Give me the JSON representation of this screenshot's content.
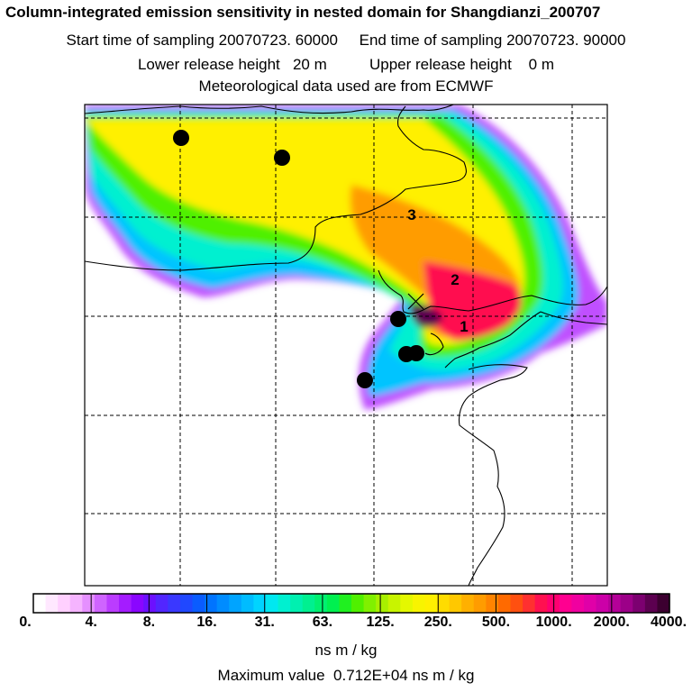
{
  "header": {
    "title": "Column-integrated emission sensitivity in nested domain for Shangdianzi_200707",
    "line2": "Start time of sampling 20070723. 60000     End time of sampling 20070723. 90000",
    "line3": "Lower release height   20 m          Upper release height    0 m",
    "line4": "Meteorological data used are from ECMWF"
  },
  "map": {
    "labels": [
      "1",
      "2",
      "3"
    ],
    "grid": "dashed"
  },
  "colorbar": {
    "ticks": [
      "0.",
      "4.",
      "8.",
      "16.",
      "31.",
      "63.",
      "125.",
      "250.",
      "500.",
      "1000.",
      "2000.",
      "4000."
    ],
    "colors": [
      "#ffffff",
      "#ffe8ff",
      "#ffd0ff",
      "#f5b4ff",
      "#e590ff",
      "#cf64ff",
      "#bb3cff",
      "#a41cff",
      "#8a06ff",
      "#6c10ff",
      "#5226ff",
      "#3a38ff",
      "#2048ff",
      "#0a5cff",
      "#0074ff",
      "#008cff",
      "#00a4ff",
      "#00bcff",
      "#00d4ff",
      "#00e8f0",
      "#00f0d0",
      "#00f0b0",
      "#00f090",
      "#00f070",
      "#00f050",
      "#20f020",
      "#50f000",
      "#80f000",
      "#a8f000",
      "#c8f400",
      "#e4f800",
      "#f8f400",
      "#fff000",
      "#ffdc00",
      "#ffc800",
      "#ffb000",
      "#ff9c00",
      "#ff8400",
      "#ff6a00",
      "#ff5010",
      "#ff3030",
      "#ff1050",
      "#ff0070",
      "#ff0090",
      "#f000a0",
      "#e000a8",
      "#cc00a8",
      "#b40098",
      "#9c0088",
      "#7c0070",
      "#5c0050",
      "#3c0030"
    ],
    "unit": "ns m / kg",
    "max_label": "Maximum value  0.712E+04 ns m / kg"
  }
}
